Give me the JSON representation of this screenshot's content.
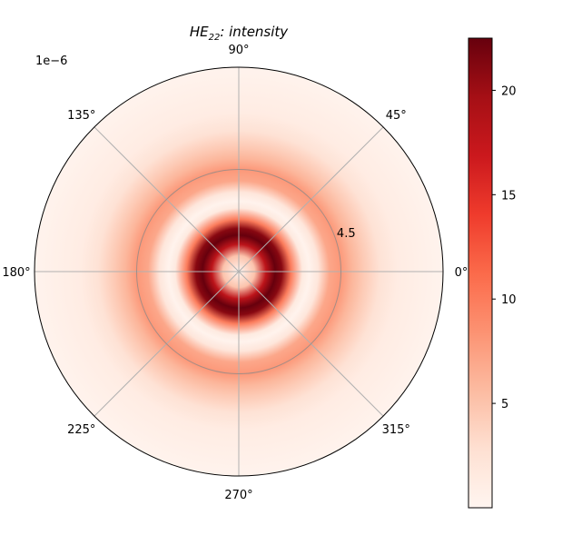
{
  "chart_data": {
    "type": "heatmap",
    "projection": "polar",
    "title": {
      "prefix": "HE",
      "subscript": "22",
      "suffix": ": intensity"
    },
    "theta_ticks": [
      "0°",
      "45°",
      "90°",
      "135°",
      "180°",
      "225°",
      "270°",
      "315°"
    ],
    "theta_tick_degrees": [
      0,
      45,
      90,
      135,
      180,
      225,
      270,
      315
    ],
    "r_ticks": [
      "4.5"
    ],
    "r_tick_values": [
      4.5
    ],
    "r_max": 9.0,
    "r_offset_text": "1e−6",
    "grid": true,
    "colormap": "Reds",
    "colorbar": {
      "position": "right",
      "vmin": 0,
      "vmax": 22.5,
      "ticks": [
        5,
        10,
        15,
        20
      ],
      "tick_labels": [
        "5",
        "10",
        "15",
        "20"
      ]
    },
    "radial_profile": {
      "r": [
        0,
        0.7,
        1.2,
        1.6,
        1.9,
        2.3,
        2.8,
        3.1,
        3.5,
        4.0,
        4.5,
        5.0,
        5.5,
        6.2,
        7.0,
        9.0
      ],
      "intensity": [
        0,
        5,
        18,
        22.5,
        21,
        10,
        1.5,
        0.3,
        2,
        7,
        8,
        6,
        4.5,
        2.5,
        1.2,
        0.3
      ]
    }
  }
}
